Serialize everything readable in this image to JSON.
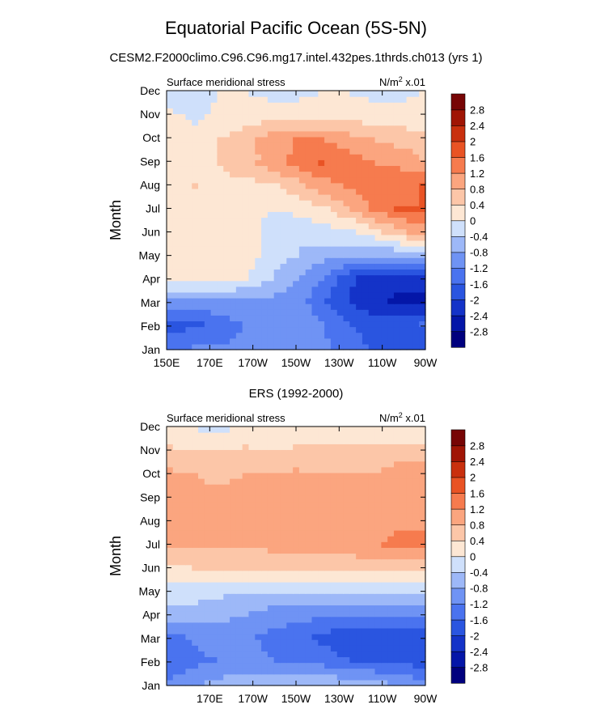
{
  "figure": {
    "title": "Equatorial Pacific Ocean (5S-5N)",
    "subtitle": "CESM2.F2000climo.C96.C96.mg17.intel.432pes.1thrds.ch013 (yrs 1)"
  },
  "chart_data": [
    {
      "type": "heatmap",
      "panel_title": "",
      "title": "Surface meridional stress",
      "units_prefix": "N/m",
      "units_sup": "2",
      "units_suffix": " x.01",
      "xlabel": "",
      "ylabel": "Month",
      "x_ticks": [
        "150E",
        "170E",
        "170W",
        "150W",
        "130W",
        "110W",
        "90W"
      ],
      "y_ticks": [
        "Jan",
        "Feb",
        "Mar",
        "Apr",
        "May",
        "Jun",
        "Jul",
        "Aug",
        "Sep",
        "Oct",
        "Nov",
        "Dec"
      ],
      "grid": [
        [
          -1.3,
          -1.2,
          -1.2,
          -1.1,
          -1.0,
          -1.0,
          -1.1,
          -1.3,
          -1.7,
          -1.9,
          -1.9
        ],
        [
          -1.8,
          -1.7,
          -1.4,
          -1.2,
          -1.0,
          -0.9,
          -1.2,
          -1.6,
          -1.8,
          -1.7,
          -1.6
        ],
        [
          -1.0,
          -1.0,
          -0.9,
          -0.9,
          -0.9,
          -1.0,
          -1.5,
          -2.0,
          -2.3,
          -2.5,
          -2.5
        ],
        [
          0.3,
          0.3,
          0.2,
          0.0,
          -0.4,
          -0.8,
          -1.2,
          -1.9,
          -2.2,
          -2.2,
          -2.2
        ],
        [
          0.3,
          0.3,
          0.3,
          0.2,
          -0.1,
          -0.4,
          -0.6,
          -0.7,
          -0.8,
          -0.7,
          -0.6
        ],
        [
          0.3,
          0.3,
          0.3,
          0.2,
          -0.2,
          -0.3,
          -0.2,
          -0.1,
          0.2,
          0.6,
          1.0
        ],
        [
          0.3,
          0.3,
          0.3,
          0.2,
          0.0,
          0.1,
          0.3,
          0.7,
          1.2,
          1.6,
          1.6
        ],
        [
          0.3,
          0.4,
          0.3,
          0.3,
          0.3,
          0.6,
          1.0,
          1.2,
          1.4,
          1.5,
          1.6
        ],
        [
          0.3,
          0.3,
          0.4,
          0.6,
          1.0,
          1.3,
          1.6,
          1.5,
          1.2,
          1.1,
          0.8
        ],
        [
          0.3,
          0.3,
          0.4,
          0.6,
          1.0,
          1.2,
          1.2,
          1.0,
          0.8,
          0.7,
          0.6
        ],
        [
          0.1,
          -0.1,
          0.1,
          0.2,
          0.3,
          0.3,
          0.3,
          0.3,
          0.2,
          0.2,
          0.1
        ],
        [
          -0.3,
          -0.1,
          0.0,
          0.0,
          -0.1,
          -0.1,
          0.0,
          0.0,
          -0.1,
          -0.1,
          0.0
        ]
      ],
      "levels": [
        -2.8,
        -2.4,
        -2,
        -1.6,
        -1.2,
        -0.8,
        -0.4,
        0,
        0.4,
        0.8,
        1.2,
        1.6,
        2,
        2.4,
        2.8
      ],
      "colorbar_labels": [
        "2.8",
        "2.4",
        "2",
        "1.6",
        "1.2",
        "0.8",
        "0.4",
        "0",
        "-0.4",
        "-0.8",
        "-1.2",
        "-1.6",
        "-2",
        "-2.4",
        "-2.8"
      ]
    },
    {
      "type": "heatmap",
      "panel_title": "ERS (1992-2000)",
      "title": "Surface meridional stress",
      "units_prefix": "N/m",
      "units_sup": "2",
      "units_suffix": " x.01",
      "xlabel": "",
      "ylabel": "Month",
      "x_ticks": [
        "",
        "170E",
        "170W",
        "150W",
        "130W",
        "110W",
        "90W"
      ],
      "y_ticks": [
        "Jan",
        "Feb",
        "Mar",
        "Apr",
        "May",
        "Jun",
        "Jul",
        "Aug",
        "Sep",
        "Oct",
        "Nov",
        "Dec"
      ],
      "grid": [
        [
          -1.1,
          -0.9,
          -0.7,
          -0.6,
          -0.6,
          -0.5,
          -0.5,
          -0.6,
          -0.7,
          -0.9,
          -1.1
        ],
        [
          -1.6,
          -1.3,
          -1.2,
          -1.1,
          -1.2,
          -1.3,
          -1.4,
          -1.6,
          -1.7,
          -1.8,
          -1.8
        ],
        [
          -1.4,
          -1.1,
          -1.0,
          -1.1,
          -1.3,
          -1.5,
          -1.7,
          -1.9,
          -2.0,
          -2.0,
          -1.9
        ],
        [
          -0.6,
          -0.6,
          -0.7,
          -0.8,
          -1.0,
          -1.0,
          -1.1,
          -1.2,
          -1.2,
          -1.2,
          -1.1
        ],
        [
          -0.2,
          -0.2,
          -0.3,
          -0.3,
          -0.3,
          -0.3,
          -0.3,
          -0.3,
          -0.4,
          -0.3,
          -0.3
        ],
        [
          0.3,
          0.4,
          0.4,
          0.4,
          0.5,
          0.5,
          0.5,
          0.5,
          0.6,
          0.6,
          0.6
        ],
        [
          0.8,
          0.9,
          0.8,
          0.8,
          0.9,
          0.9,
          0.9,
          1.0,
          1.1,
          1.3,
          1.3
        ],
        [
          0.9,
          0.9,
          0.9,
          0.9,
          1.0,
          1.1,
          1.0,
          1.0,
          1.0,
          1.1,
          1.1
        ],
        [
          1.1,
          0.9,
          0.9,
          1.0,
          1.0,
          1.1,
          1.0,
          0.9,
          0.9,
          1.0,
          1.0
        ],
        [
          0.9,
          0.8,
          0.7,
          0.8,
          0.8,
          0.9,
          0.8,
          0.8,
          0.8,
          1.0,
          1.1
        ],
        [
          0.5,
          0.5,
          0.5,
          0.5,
          0.4,
          0.5,
          0.5,
          0.5,
          0.5,
          0.6,
          0.6
        ],
        [
          0.1,
          0.0,
          -0.1,
          0.1,
          0.1,
          0.1,
          0.2,
          0.1,
          0.2,
          0.1,
          0.1
        ]
      ],
      "levels": [
        -2.8,
        -2.4,
        -2,
        -1.6,
        -1.2,
        -0.8,
        -0.4,
        0,
        0.4,
        0.8,
        1.2,
        1.6,
        2,
        2.4,
        2.8
      ],
      "colorbar_labels": [
        "2.8",
        "2.4",
        "2",
        "1.6",
        "1.2",
        "0.8",
        "0.4",
        "0",
        "-0.4",
        "-0.8",
        "-1.2",
        "-1.6",
        "-2",
        "-2.4",
        "-2.8"
      ]
    }
  ],
  "colors": {
    "palette": [
      "#00007e",
      "#0416a8",
      "#1433c8",
      "#2a55e0",
      "#4a73ef",
      "#6f93f4",
      "#9db8f8",
      "#cfe0fb",
      "#fde7d4",
      "#fcc6a8",
      "#fba57f",
      "#f67b4e",
      "#e95324",
      "#c9300e",
      "#a01505",
      "#770505"
    ]
  }
}
